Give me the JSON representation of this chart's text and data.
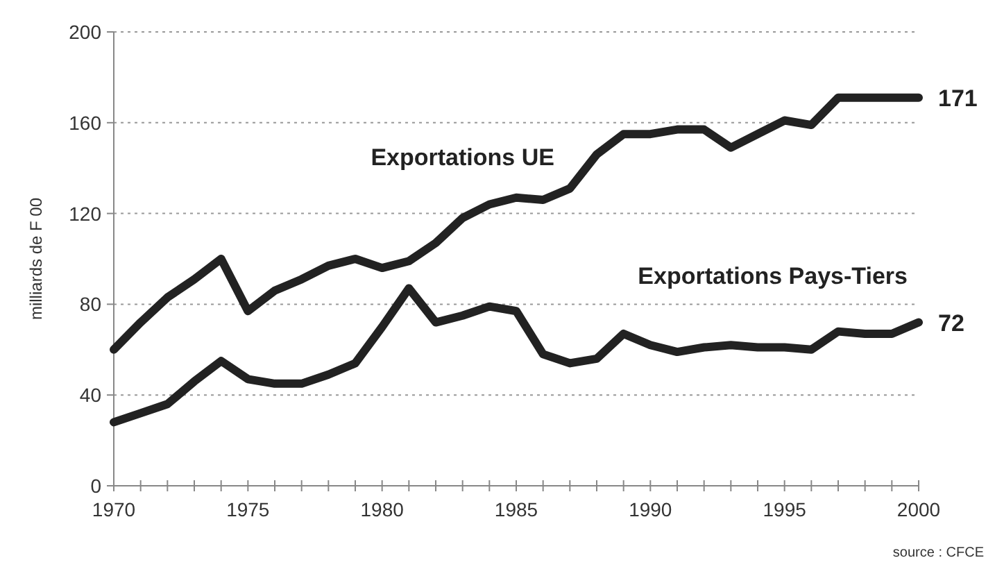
{
  "chart_data": {
    "type": "line",
    "ylabel": "milliards de F 00",
    "x": [
      1970,
      1971,
      1972,
      1973,
      1974,
      1975,
      1976,
      1977,
      1978,
      1979,
      1980,
      1981,
      1982,
      1983,
      1984,
      1985,
      1986,
      1987,
      1988,
      1989,
      1990,
      1991,
      1992,
      1993,
      1994,
      1995,
      1996,
      1997,
      1998,
      1999,
      2000
    ],
    "series": [
      {
        "name": "Exportations UE",
        "color": "#222222",
        "values": [
          60,
          72,
          83,
          91,
          100,
          77,
          86,
          91,
          97,
          100,
          96,
          99,
          107,
          118,
          124,
          127,
          126,
          131,
          146,
          155,
          155,
          157,
          157,
          149,
          155,
          161,
          159,
          171,
          171,
          171,
          171
        ],
        "value_labels": [
          null,
          null,
          null,
          null,
          null,
          null,
          null,
          null,
          null,
          null,
          null,
          null,
          null,
          null,
          null,
          null,
          null,
          null,
          null,
          null,
          null,
          null,
          null,
          null,
          null,
          null,
          null,
          null,
          null,
          null,
          "171"
        ]
      },
      {
        "name": "Exportations Pays-Tiers",
        "color": "#222222",
        "values": [
          28,
          32,
          36,
          46,
          55,
          47,
          45,
          45,
          49,
          54,
          70,
          87,
          72,
          75,
          79,
          77,
          58,
          54,
          56,
          67,
          62,
          59,
          61,
          62,
          61,
          61,
          60,
          68,
          67,
          67,
          72
        ],
        "value_labels": [
          null,
          null,
          null,
          null,
          null,
          null,
          null,
          null,
          null,
          null,
          null,
          null,
          null,
          null,
          null,
          null,
          null,
          null,
          null,
          null,
          null,
          null,
          null,
          null,
          null,
          null,
          null,
          null,
          null,
          null,
          "72"
        ]
      }
    ],
    "xlim": [
      1970,
      2000
    ],
    "ylim": [
      0,
      200
    ],
    "xticks": [
      1970,
      {
        "value": 1971,
        "label": null
      },
      {
        "value": 1972,
        "label": null
      },
      {
        "value": 1973,
        "label": null
      },
      {
        "value": 1974,
        "label": null
      },
      1975,
      {
        "value": 1976,
        "label": null
      },
      {
        "value": 1977,
        "label": null
      },
      {
        "value": 1978,
        "label": null
      },
      {
        "value": 1979,
        "label": null
      },
      1980,
      {
        "value": 1981,
        "label": null
      },
      {
        "value": 1982,
        "label": null
      },
      {
        "value": 1983,
        "label": null
      },
      {
        "value": 1984,
        "label": null
      },
      1985,
      {
        "value": 1986,
        "label": null
      },
      {
        "value": 1987,
        "label": null
      },
      {
        "value": 1988,
        "label": null
      },
      {
        "value": 1989,
        "label": null
      },
      1990,
      {
        "value": 1991,
        "label": null
      },
      {
        "value": 1992,
        "label": null
      },
      {
        "value": 1993,
        "label": null
      },
      {
        "value": 1994,
        "label": null
      },
      1995,
      {
        "value": 1996,
        "label": null
      },
      {
        "value": 1997,
        "label": null
      },
      {
        "value": 1998,
        "label": null
      },
      {
        "value": 1999,
        "label": null
      },
      2000
    ],
    "yticks": [
      0,
      40,
      80,
      120,
      160,
      200
    ],
    "grid": "y",
    "line_style": "solid",
    "marker": "none",
    "annotations": [
      "source : CFCE"
    ]
  }
}
